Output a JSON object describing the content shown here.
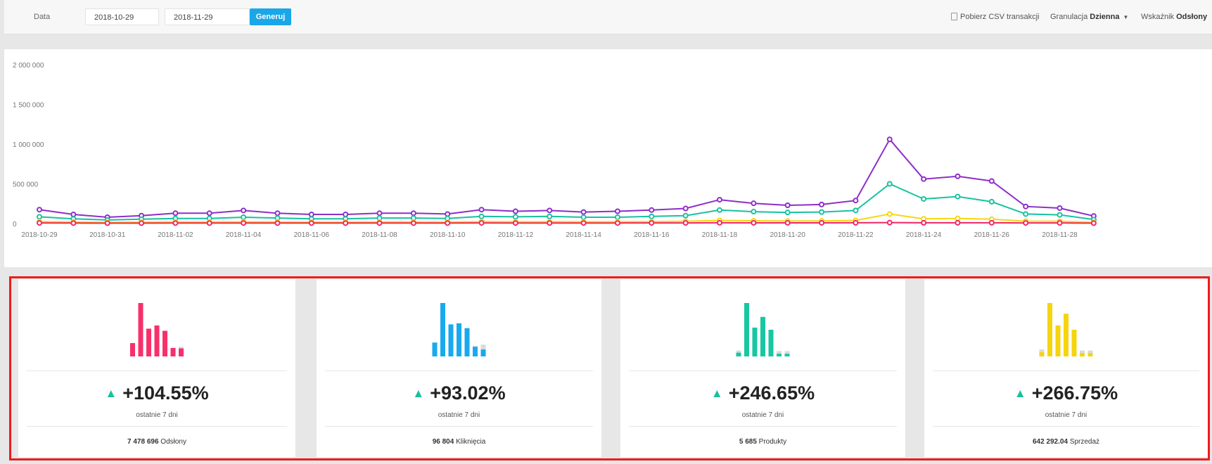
{
  "toolbar": {
    "date_label": "Data",
    "date_from": "2018-10-29",
    "date_to": "2018-11-29",
    "generate_label": "Generuj",
    "csv_label": "Pobierz CSV transakcji",
    "granulation_label": "Granulacja",
    "granulation_value": "Dzienna",
    "metric_label": "Wskaźnik",
    "metric_value": "Odsłony"
  },
  "chart_data": {
    "type": "line",
    "x": [
      "2018-10-29",
      "2018-10-30",
      "2018-10-31",
      "2018-11-01",
      "2018-11-02",
      "2018-11-03",
      "2018-11-04",
      "2018-11-05",
      "2018-11-06",
      "2018-11-07",
      "2018-11-08",
      "2018-11-09",
      "2018-11-10",
      "2018-11-11",
      "2018-11-12",
      "2018-11-13",
      "2018-11-14",
      "2018-11-15",
      "2018-11-16",
      "2018-11-17",
      "2018-11-18",
      "2018-11-19",
      "2018-11-20",
      "2018-11-21",
      "2018-11-22",
      "2018-11-23",
      "2018-11-24",
      "2018-11-25",
      "2018-11-26",
      "2018-11-27",
      "2018-11-28",
      "2018-11-29"
    ],
    "xticks": [
      "2018-10-29",
      "2018-10-31",
      "2018-11-02",
      "2018-11-04",
      "2018-11-06",
      "2018-11-08",
      "2018-11-10",
      "2018-11-12",
      "2018-11-14",
      "2018-11-16",
      "2018-11-18",
      "2018-11-20",
      "2018-11-22",
      "2018-11-24",
      "2018-11-26",
      "2018-11-28"
    ],
    "yticks": [
      0,
      500000,
      1000000,
      1500000,
      2000000
    ],
    "ytick_labels": [
      "0",
      "500 000",
      "1 000 000",
      "1 500 000",
      "2 000 000"
    ],
    "ylim": [
      0,
      2000000
    ],
    "grid": false,
    "series": [
      {
        "color": "#8e2ec8",
        "values": [
          175000,
          115000,
          80000,
          100000,
          130000,
          130000,
          165000,
          130000,
          115000,
          115000,
          130000,
          130000,
          120000,
          175000,
          155000,
          165000,
          145000,
          155000,
          170000,
          190000,
          300000,
          255000,
          230000,
          240000,
          290000,
          1060000,
          560000,
          595000,
          535000,
          215000,
          195000,
          95000
        ]
      },
      {
        "color": "#17c2a0",
        "values": [
          85000,
          60000,
          45000,
          55000,
          65000,
          65000,
          80000,
          70000,
          60000,
          60000,
          70000,
          70000,
          65000,
          90000,
          85000,
          90000,
          80000,
          80000,
          90000,
          100000,
          170000,
          150000,
          140000,
          145000,
          165000,
          500000,
          310000,
          340000,
          275000,
          120000,
          110000,
          50000
        ]
      },
      {
        "color": "#f5d80e",
        "values": [
          25000,
          20000,
          15000,
          18000,
          20000,
          20000,
          22000,
          20000,
          18000,
          18000,
          20000,
          20000,
          19000,
          25000,
          23000,
          24000,
          22000,
          23000,
          25000,
          28000,
          40000,
          35000,
          32000,
          33000,
          40000,
          120000,
          60000,
          65000,
          55000,
          30000,
          28000,
          15000
        ]
      },
      {
        "color": "#f02664",
        "values": [
          8000,
          6000,
          5000,
          5000,
          6000,
          6000,
          7000,
          6000,
          6000,
          6000,
          6000,
          6000,
          6000,
          8000,
          7000,
          7000,
          7000,
          7000,
          8000,
          8000,
          10000,
          9000,
          9000,
          9000,
          10000,
          12000,
          10000,
          10000,
          10000,
          8000,
          8000,
          5000
        ]
      }
    ]
  },
  "cards": [
    {
      "color": "#f7306b",
      "bars": [
        0.25,
        1.0,
        0.52,
        0.58,
        0.48,
        0.16,
        0.15
      ],
      "ghost": [
        0,
        0,
        0,
        0,
        0,
        0,
        0.18
      ],
      "change": "+104.55%",
      "period": "ostatnie 7 dni",
      "total_value": "7 478 696",
      "total_label": "Odsłony"
    },
    {
      "color": "#18a9ef",
      "bars": [
        0.26,
        1.0,
        0.6,
        0.62,
        0.53,
        0.18,
        0.13
      ],
      "ghost": [
        0,
        0,
        0,
        0,
        0,
        0.2,
        0.22
      ],
      "change": "+93.02%",
      "period": "ostatnie 7 dni",
      "total_value": "96 804",
      "total_label": "Kliknięcia"
    },
    {
      "color": "#18c7a2",
      "bars": [
        0.07,
        1.0,
        0.54,
        0.74,
        0.5,
        0.05,
        0.05
      ],
      "ghost": [
        0.11,
        0,
        0,
        0,
        0,
        0.1,
        0.1
      ],
      "change": "+246.65%",
      "period": "ostatnie 7 dni",
      "total_value": "5 685",
      "total_label": "Produkty"
    },
    {
      "color": "#f6d40e",
      "bars": [
        0.08,
        1.0,
        0.58,
        0.8,
        0.5,
        0.06,
        0.06
      ],
      "ghost": [
        0.13,
        0,
        0,
        0,
        0,
        0.11,
        0.11
      ],
      "change": "+266.75%",
      "period": "ostatnie 7 dni",
      "total_value": "642 292.04",
      "total_label": "Sprzedaż"
    }
  ]
}
